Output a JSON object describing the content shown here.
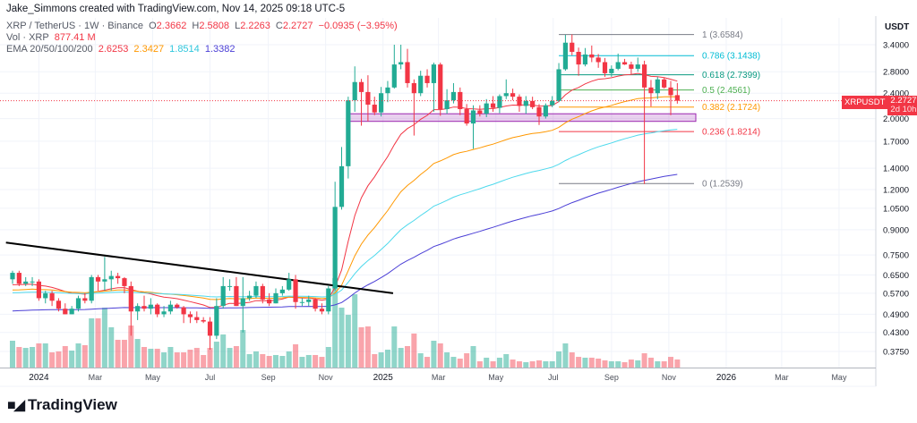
{
  "creator": "Jake_Simmons created with TradingView.com, Nov 14, 2025 09:18 UTC-5",
  "legend": {
    "symbol_line": "XRP / TetherUS · 1W · Binance",
    "o_label": "O",
    "o": "2.3662",
    "h_label": "H",
    "h": "2.5808",
    "l_label": "L",
    "l": "2.2263",
    "c_label": "C",
    "c": "2.2727",
    "change": "−0.0935 (−3.95%)",
    "vol_label": "Vol · XRP",
    "vol": "877.41 M",
    "ema_label": "EMA 20/50/100/200",
    "ema_values": [
      "2.6253",
      "2.3427",
      "1.8514",
      "1.3382"
    ]
  },
  "price_axis": {
    "currency": "USDT",
    "ticks": [
      "3.4000",
      "2.8000",
      "2.4000",
      "2.0000",
      "1.7000",
      "1.4000",
      "1.2000",
      "1.0500",
      "0.9000",
      "0.7500",
      "0.6500",
      "0.5700",
      "0.4900",
      "0.4300",
      "0.3750"
    ]
  },
  "price_label": {
    "symbol": "XRPUSDT",
    "price": "2.2727",
    "countdown": "2d 10h"
  },
  "logo": "TradingView",
  "colors": {
    "up": "#22ab94",
    "down": "#f23645",
    "ema20": "#f23645",
    "ema50": "#ff9800",
    "ema100": "#4dd9ec",
    "ema200": "#4b3fd6",
    "zone": "#9c27b0",
    "trendline": "#000000"
  },
  "chart_data": {
    "type": "candlestick",
    "title": "XRP / TetherUS · 1W · Binance",
    "y_scale": "log",
    "ylim": [
      0.35,
      3.75
    ],
    "grid": true,
    "x_ticks": [
      {
        "label": "2024",
        "date": "2024-01-01"
      },
      {
        "label": "Mar",
        "date": "2024-03-01"
      },
      {
        "label": "May",
        "date": "2024-05-01"
      },
      {
        "label": "Jul",
        "date": "2024-07-01"
      },
      {
        "label": "Sep",
        "date": "2024-09-01"
      },
      {
        "label": "Nov",
        "date": "2024-11-01"
      },
      {
        "label": "2025",
        "date": "2025-01-01"
      },
      {
        "label": "Mar",
        "date": "2025-03-01"
      },
      {
        "label": "May",
        "date": "2025-05-01"
      },
      {
        "label": "Jul",
        "date": "2025-07-01"
      },
      {
        "label": "Sep",
        "date": "2025-09-01"
      },
      {
        "label": "Nov",
        "date": "2025-11-01"
      },
      {
        "label": "2026",
        "date": "2026-01-01"
      },
      {
        "label": "Mar",
        "date": "2026-03-01"
      },
      {
        "label": "May",
        "date": "2026-05-01"
      }
    ],
    "candle_fields": [
      "date",
      "open",
      "high",
      "low",
      "close",
      "volume_M"
    ],
    "candles": [
      [
        "2023-12-04",
        0.63,
        0.67,
        0.61,
        0.66,
        2910
      ],
      [
        "2023-12-11",
        0.66,
        0.67,
        0.6,
        0.61,
        2230
      ],
      [
        "2023-12-18",
        0.61,
        0.64,
        0.6,
        0.62,
        2130
      ],
      [
        "2023-12-25",
        0.62,
        0.64,
        0.6,
        0.62,
        2230
      ],
      [
        "2024-01-01",
        0.62,
        0.63,
        0.54,
        0.55,
        2620
      ],
      [
        "2024-01-08",
        0.55,
        0.58,
        0.53,
        0.57,
        2620
      ],
      [
        "2024-01-15",
        0.57,
        0.58,
        0.52,
        0.54,
        1650
      ],
      [
        "2024-01-22",
        0.54,
        0.55,
        0.5,
        0.51,
        1750
      ],
      [
        "2024-01-29",
        0.51,
        0.53,
        0.49,
        0.49,
        2330
      ],
      [
        "2024-02-05",
        0.49,
        0.52,
        0.49,
        0.51,
        1840
      ],
      [
        "2024-02-12",
        0.51,
        0.56,
        0.5,
        0.55,
        2620
      ],
      [
        "2024-02-19",
        0.55,
        0.57,
        0.53,
        0.54,
        2430
      ],
      [
        "2024-02-26",
        0.54,
        0.65,
        0.53,
        0.64,
        5340
      ],
      [
        "2024-03-04",
        0.64,
        0.65,
        0.58,
        0.62,
        5340
      ],
      [
        "2024-03-11",
        0.62,
        0.74,
        0.58,
        0.63,
        6500
      ],
      [
        "2024-03-18",
        0.63,
        0.67,
        0.58,
        0.645,
        4370
      ],
      [
        "2024-03-25",
        0.645,
        0.66,
        0.61,
        0.635,
        3010
      ],
      [
        "2024-04-01",
        0.635,
        0.64,
        0.57,
        0.6,
        3010
      ],
      [
        "2024-04-08",
        0.6,
        0.62,
        0.42,
        0.5,
        4560
      ],
      [
        "2024-04-15",
        0.5,
        0.53,
        0.47,
        0.52,
        3100
      ],
      [
        "2024-04-22",
        0.52,
        0.56,
        0.5,
        0.51,
        2230
      ],
      [
        "2024-04-29",
        0.51,
        0.55,
        0.49,
        0.525,
        2040
      ],
      [
        "2024-05-06",
        0.525,
        0.53,
        0.48,
        0.49,
        2040
      ],
      [
        "2024-05-13",
        0.49,
        0.52,
        0.48,
        0.5,
        1650
      ],
      [
        "2024-05-20",
        0.5,
        0.54,
        0.49,
        0.525,
        2230
      ],
      [
        "2024-05-27",
        0.525,
        0.53,
        0.51,
        0.515,
        1650
      ],
      [
        "2024-06-03",
        0.515,
        0.52,
        0.46,
        0.49,
        1650
      ],
      [
        "2024-06-10",
        0.49,
        0.5,
        0.46,
        0.48,
        1940
      ],
      [
        "2024-06-17",
        0.48,
        0.5,
        0.46,
        0.47,
        2130
      ],
      [
        "2024-06-24",
        0.47,
        0.48,
        0.46,
        0.465,
        1360
      ],
      [
        "2024-07-01",
        0.465,
        0.48,
        0.38,
        0.42,
        2130
      ],
      [
        "2024-07-08",
        0.42,
        0.55,
        0.41,
        0.52,
        2810
      ],
      [
        "2024-07-15",
        0.52,
        0.64,
        0.51,
        0.6,
        3590
      ],
      [
        "2024-07-22",
        0.6,
        0.63,
        0.58,
        0.6,
        2130
      ],
      [
        "2024-07-29",
        0.6,
        0.64,
        0.52,
        0.52,
        2330
      ],
      [
        "2024-08-05",
        0.52,
        0.64,
        0.43,
        0.55,
        4070
      ],
      [
        "2024-08-12",
        0.55,
        0.58,
        0.54,
        0.56,
        1460
      ],
      [
        "2024-08-19",
        0.56,
        0.62,
        0.55,
        0.6,
        1750
      ],
      [
        "2024-08-26",
        0.6,
        0.61,
        0.53,
        0.545,
        1460
      ],
      [
        "2024-09-02",
        0.545,
        0.57,
        0.52,
        0.53,
        1260
      ],
      [
        "2024-09-09",
        0.53,
        0.59,
        0.53,
        0.57,
        1360
      ],
      [
        "2024-09-16",
        0.57,
        0.6,
        0.56,
        0.585,
        1260
      ],
      [
        "2024-09-23",
        0.585,
        0.66,
        0.58,
        0.63,
        1750
      ],
      [
        "2024-09-30",
        0.63,
        0.65,
        0.51,
        0.535,
        2520
      ],
      [
        "2024-10-07",
        0.535,
        0.55,
        0.52,
        0.535,
        1160
      ],
      [
        "2024-10-14",
        0.535,
        0.56,
        0.52,
        0.545,
        1360
      ],
      [
        "2024-10-21",
        0.545,
        0.55,
        0.5,
        0.51,
        1360
      ],
      [
        "2024-10-28",
        0.51,
        0.53,
        0.49,
        0.5,
        1160
      ],
      [
        "2024-11-04",
        0.5,
        0.6,
        0.49,
        0.59,
        2230
      ],
      [
        "2024-11-11",
        0.59,
        1.27,
        0.58,
        1.06,
        9700
      ],
      [
        "2024-11-18",
        1.06,
        1.63,
        1.04,
        1.42,
        6500
      ],
      [
        "2024-11-25",
        1.42,
        2.34,
        1.3,
        2.28,
        5720
      ],
      [
        "2024-12-02",
        2.28,
        2.91,
        2.1,
        2.6,
        7950
      ],
      [
        "2024-12-09",
        2.6,
        2.66,
        1.9,
        2.42,
        4370
      ],
      [
        "2024-12-16",
        2.42,
        2.73,
        1.96,
        2.21,
        4460
      ],
      [
        "2024-12-23",
        2.21,
        2.34,
        2.05,
        2.09,
        1460
      ],
      [
        "2024-12-30",
        2.09,
        2.51,
        2.03,
        2.4,
        1650
      ],
      [
        "2025-01-06",
        2.4,
        2.62,
        2.25,
        2.5,
        1940
      ],
      [
        "2025-01-13",
        2.5,
        3.4,
        2.48,
        2.95,
        4460
      ],
      [
        "2025-01-20",
        2.95,
        3.4,
        2.85,
        3.0,
        2130
      ],
      [
        "2025-01-27",
        3.0,
        3.3,
        2.5,
        2.58,
        2330
      ],
      [
        "2025-02-03",
        2.58,
        2.65,
        1.77,
        2.4,
        3690
      ],
      [
        "2025-02-10",
        2.4,
        2.82,
        2.35,
        2.72,
        1550
      ],
      [
        "2025-02-17",
        2.72,
        2.85,
        2.5,
        2.58,
        1160
      ],
      [
        "2025-02-24",
        2.58,
        2.99,
        2.1,
        2.95,
        2910
      ],
      [
        "2025-03-03",
        2.95,
        2.99,
        2.04,
        2.14,
        2620
      ],
      [
        "2025-03-10",
        2.14,
        2.47,
        2.07,
        2.28,
        1650
      ],
      [
        "2025-03-17",
        2.28,
        2.58,
        2.23,
        2.42,
        1160
      ],
      [
        "2025-03-24",
        2.42,
        2.5,
        2.05,
        2.14,
        970
      ],
      [
        "2025-03-31",
        2.14,
        2.22,
        1.9,
        1.93,
        1550
      ],
      [
        "2025-04-07",
        1.93,
        2.2,
        1.61,
        2.12,
        2330
      ],
      [
        "2025-04-14",
        2.12,
        2.2,
        2.03,
        2.07,
        680
      ],
      [
        "2025-04-21",
        2.07,
        2.3,
        2.02,
        2.23,
        1070
      ],
      [
        "2025-04-28",
        2.23,
        2.35,
        2.1,
        2.16,
        680
      ],
      [
        "2025-05-05",
        2.16,
        2.38,
        2.08,
        2.35,
        1070
      ],
      [
        "2025-05-12",
        2.35,
        2.65,
        2.3,
        2.4,
        1460
      ],
      [
        "2025-05-19",
        2.4,
        2.48,
        2.28,
        2.34,
        870
      ],
      [
        "2025-05-26",
        2.34,
        2.38,
        2.1,
        2.19,
        680
      ],
      [
        "2025-06-02",
        2.19,
        2.35,
        2.07,
        2.27,
        580
      ],
      [
        "2025-06-09",
        2.27,
        2.34,
        2.14,
        2.17,
        680
      ],
      [
        "2025-06-16",
        2.17,
        2.22,
        1.91,
        2.03,
        780
      ],
      [
        "2025-06-23",
        2.03,
        2.23,
        2.0,
        2.2,
        680
      ],
      [
        "2025-06-30",
        2.2,
        2.35,
        2.17,
        2.27,
        680
      ],
      [
        "2025-07-07",
        2.27,
        2.98,
        2.25,
        2.85,
        1750
      ],
      [
        "2025-07-14",
        2.85,
        3.65,
        2.82,
        3.45,
        2620
      ],
      [
        "2025-07-21",
        3.45,
        3.66,
        3.15,
        3.23,
        1650
      ],
      [
        "2025-07-28",
        3.23,
        3.33,
        2.72,
        2.95,
        1160
      ],
      [
        "2025-08-04",
        2.95,
        3.32,
        2.91,
        3.17,
        1070
      ],
      [
        "2025-08-11",
        3.17,
        3.38,
        3.0,
        3.1,
        1070
      ],
      [
        "2025-08-18",
        3.1,
        3.18,
        2.88,
        3.0,
        970
      ],
      [
        "2025-08-25",
        3.0,
        3.09,
        2.7,
        2.77,
        780
      ],
      [
        "2025-09-01",
        2.77,
        2.93,
        2.7,
        2.86,
        680
      ],
      [
        "2025-09-08",
        2.86,
        3.19,
        2.83,
        3.0,
        680
      ],
      [
        "2025-09-15",
        3.0,
        3.07,
        2.94,
        2.95,
        580
      ],
      [
        "2025-09-22",
        2.95,
        3.01,
        2.75,
        2.86,
        870
      ],
      [
        "2025-09-29",
        2.86,
        3.1,
        2.8,
        2.95,
        780
      ],
      [
        "2025-10-06",
        2.95,
        3.03,
        1.25,
        2.5,
        1550
      ],
      [
        "2025-10-13",
        2.5,
        2.64,
        2.18,
        2.4,
        1070
      ],
      [
        "2025-10-20",
        2.4,
        2.7,
        2.3,
        2.65,
        680
      ],
      [
        "2025-10-27",
        2.65,
        2.69,
        2.48,
        2.5,
        680
      ],
      [
        "2025-11-03",
        2.5,
        2.62,
        2.05,
        2.3662,
        1160
      ],
      [
        "2025-11-10",
        2.3662,
        2.5808,
        2.2263,
        2.2727,
        877.41
      ]
    ],
    "ema_periods": [
      20,
      50,
      100,
      200
    ],
    "fib_retracement": {
      "start_date": "2025-07-07",
      "levels": [
        {
          "level": "1",
          "price": 3.6584,
          "label": "1 (3.6584)",
          "color": "#787b86"
        },
        {
          "level": "0.786",
          "price": 3.1438,
          "label": "0.786 (3.1438)",
          "color": "#00bcd4"
        },
        {
          "level": "0.618",
          "price": 2.7399,
          "label": "0.618 (2.7399)",
          "color": "#089981"
        },
        {
          "level": "0.5",
          "price": 2.4561,
          "label": "0.5 (2.4561)",
          "color": "#4caf50"
        },
        {
          "level": "0.382",
          "price": 2.1724,
          "label": "0.382 (2.1724)",
          "color": "#ff9800"
        },
        {
          "level": "0.236",
          "price": 1.8214,
          "label": "0.236 (1.8214)",
          "color": "#f23645"
        },
        {
          "level": "0",
          "price": 1.2539,
          "label": "0 (1.2539)",
          "color": "#787b86"
        }
      ]
    },
    "support_zone": {
      "start_date": "2024-11-25",
      "price_low": 1.96,
      "price_high": 2.07
    },
    "trendline": {
      "start": {
        "date": "2023-11-27",
        "price": 0.82
      },
      "end": {
        "date": "2025-01-06",
        "price": 0.57
      }
    },
    "last_price": 2.2727
  }
}
